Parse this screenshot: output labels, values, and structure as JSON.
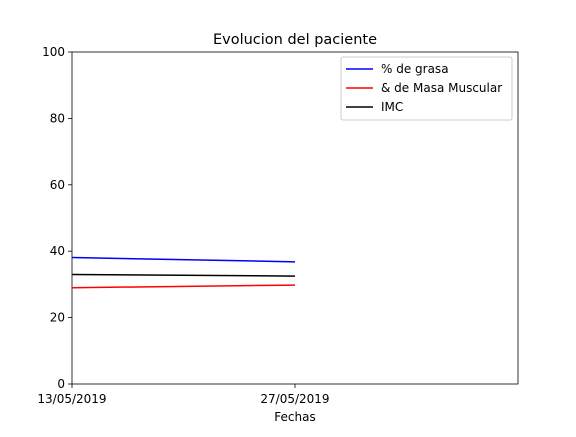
{
  "chart_data": {
    "type": "line",
    "title": "Evolucion del paciente",
    "xlabel": "Fechas",
    "ylabel": "",
    "x": [
      "13/05/2019",
      "27/05/2019"
    ],
    "ylim": [
      0,
      100
    ],
    "yticks": [
      0,
      20,
      40,
      60,
      80,
      100
    ],
    "grid": false,
    "legend_position": "top-right",
    "series": [
      {
        "name": "% de grasa",
        "color": "#0000ff",
        "values": [
          38.1,
          36.8
        ]
      },
      {
        "name": "& de Masa Muscular",
        "color": "#ff0000",
        "values": [
          29.0,
          29.8
        ]
      },
      {
        "name": "IMC",
        "color": "#000000",
        "values": [
          33.0,
          32.5
        ]
      }
    ]
  }
}
